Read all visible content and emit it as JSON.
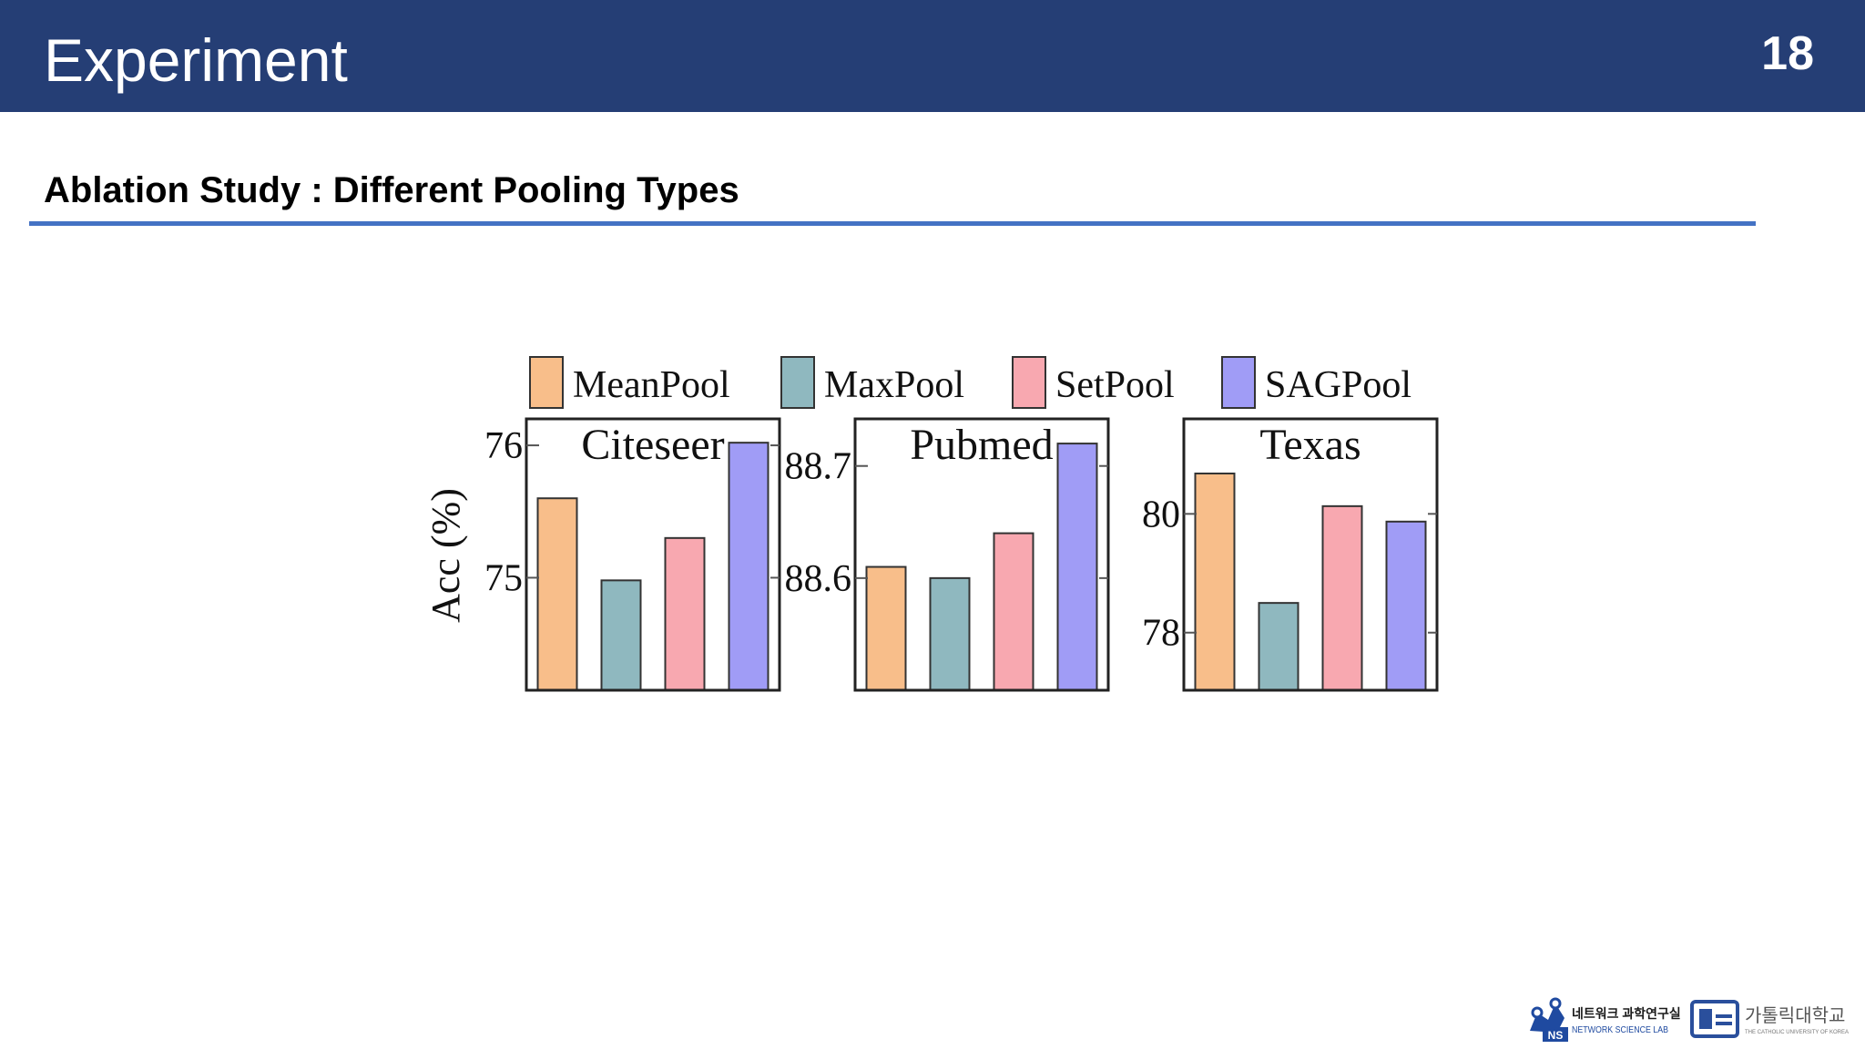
{
  "header": {
    "title": "Experiment",
    "page_number": "18"
  },
  "section": {
    "title": "Ablation Study : Different Pooling Types"
  },
  "colors": {
    "header_bg": "#253e75",
    "rule": "#4472c4",
    "MeanPool": "#f8be8a",
    "MaxPool": "#8fb8bf",
    "SetPool": "#f8a8b0",
    "SAGPool": "#a09cf6"
  },
  "chart_data": {
    "type": "bar",
    "ylabel": "Acc (%)",
    "legend": {
      "placement": "top",
      "entries": [
        "MeanPool",
        "MaxPool",
        "SetPool",
        "SAGPool"
      ]
    },
    "panels": [
      {
        "title": "Citeseer",
        "categories": [
          "MeanPool",
          "MaxPool",
          "SetPool",
          "SAGPool"
        ],
        "values": [
          75.6,
          74.98,
          75.3,
          76.02
        ],
        "ylim": [
          74.15,
          76.2
        ],
        "yticks": [
          75,
          76
        ],
        "ytick_labels": [
          "75",
          "76"
        ]
      },
      {
        "title": "Pubmed",
        "categories": [
          "MeanPool",
          "MaxPool",
          "SetPool",
          "SAGPool"
        ],
        "values": [
          88.61,
          88.6,
          88.64,
          88.72
        ],
        "ylim": [
          88.5,
          88.742
        ],
        "yticks": [
          88.6,
          88.7
        ],
        "ytick_labels": [
          "88.6",
          "88.7"
        ]
      },
      {
        "title": "Texas",
        "categories": [
          "MeanPool",
          "MaxPool",
          "SetPool",
          "SAGPool"
        ],
        "values": [
          80.68,
          78.5,
          80.13,
          79.87
        ],
        "ylim": [
          77.03,
          81.6
        ],
        "yticks": [
          78,
          80
        ],
        "ytick_labels": [
          "78",
          "80"
        ]
      }
    ]
  },
  "footer": {
    "lab_logo": {
      "name_kr": "네트워크 과학연구실",
      "name_en": "NETWORK SCIENCE LAB",
      "badge": "NS"
    },
    "university_logo": {
      "name_kr": "가톨릭대학교",
      "name_en": "THE CATHOLIC UNIVERSITY OF KOREA"
    }
  }
}
